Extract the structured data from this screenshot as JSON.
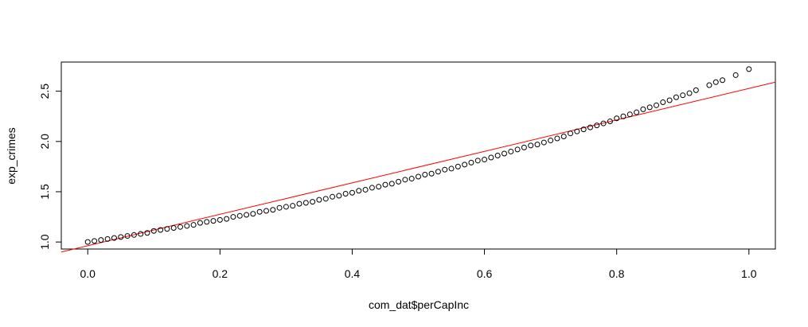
{
  "chart_data": {
    "type": "scatter",
    "title": "",
    "xlabel": "com_dat$perCapInc",
    "ylabel": "exp_crimes",
    "xlim": [
      -0.04,
      1.04
    ],
    "ylim": [
      0.93,
      2.79
    ],
    "xticks": [
      0.0,
      0.2,
      0.4,
      0.6,
      0.8,
      1.0
    ],
    "xtick_labels": [
      "0.0",
      "0.2",
      "0.4",
      "0.6",
      "0.8",
      "1.0"
    ],
    "yticks": [
      1.0,
      1.5,
      2.0,
      2.5
    ],
    "ytick_labels": [
      "1.0",
      "1.5",
      "2.0",
      "2.5"
    ],
    "grid": false,
    "points": {
      "x": [
        0,
        0.01,
        0.02,
        0.03,
        0.04,
        0.05,
        0.06,
        0.07,
        0.08,
        0.09,
        0.1,
        0.11,
        0.12,
        0.13,
        0.14,
        0.15,
        0.16,
        0.17,
        0.18,
        0.19,
        0.2,
        0.21,
        0.22,
        0.23,
        0.24,
        0.25,
        0.26,
        0.27,
        0.28,
        0.29,
        0.3,
        0.31,
        0.32,
        0.33,
        0.34,
        0.35,
        0.36,
        0.37,
        0.38,
        0.39,
        0.4,
        0.41,
        0.42,
        0.43,
        0.44,
        0.45,
        0.46,
        0.47,
        0.48,
        0.49,
        0.5,
        0.51,
        0.52,
        0.53,
        0.54,
        0.55,
        0.56,
        0.57,
        0.58,
        0.59,
        0.6,
        0.61,
        0.62,
        0.63,
        0.64,
        0.65,
        0.66,
        0.67,
        0.68,
        0.69,
        0.7,
        0.71,
        0.72,
        0.73,
        0.74,
        0.75,
        0.76,
        0.77,
        0.78,
        0.79,
        0.8,
        0.81,
        0.82,
        0.83,
        0.84,
        0.85,
        0.86,
        0.87,
        0.88,
        0.89,
        0.9,
        0.91,
        0.92,
        0.94,
        0.95,
        0.96,
        0.98,
        1.0
      ],
      "y": [
        1.0,
        1.01,
        1.02,
        1.03,
        1.04,
        1.05,
        1.06,
        1.07,
        1.08,
        1.09,
        1.11,
        1.12,
        1.13,
        1.14,
        1.15,
        1.16,
        1.17,
        1.19,
        1.2,
        1.21,
        1.22,
        1.23,
        1.25,
        1.26,
        1.27,
        1.28,
        1.3,
        1.31,
        1.32,
        1.34,
        1.35,
        1.36,
        1.38,
        1.39,
        1.4,
        1.42,
        1.43,
        1.45,
        1.46,
        1.48,
        1.49,
        1.51,
        1.52,
        1.54,
        1.55,
        1.57,
        1.58,
        1.6,
        1.62,
        1.63,
        1.65,
        1.67,
        1.68,
        1.7,
        1.72,
        1.73,
        1.75,
        1.77,
        1.79,
        1.81,
        1.82,
        1.84,
        1.86,
        1.88,
        1.9,
        1.92,
        1.94,
        1.96,
        1.97,
        1.99,
        2.01,
        2.03,
        2.05,
        2.08,
        2.1,
        2.12,
        2.14,
        2.16,
        2.18,
        2.2,
        2.23,
        2.25,
        2.27,
        2.29,
        2.32,
        2.34,
        2.36,
        2.39,
        2.41,
        2.44,
        2.46,
        2.48,
        2.51,
        2.56,
        2.59,
        2.61,
        2.66,
        2.72
      ],
      "marker": "open-circle",
      "color": "#000000"
    },
    "fit_line": {
      "x": [
        -0.04,
        1.04
      ],
      "y": [
        0.9,
        2.59
      ],
      "color": "#ff0000"
    }
  }
}
